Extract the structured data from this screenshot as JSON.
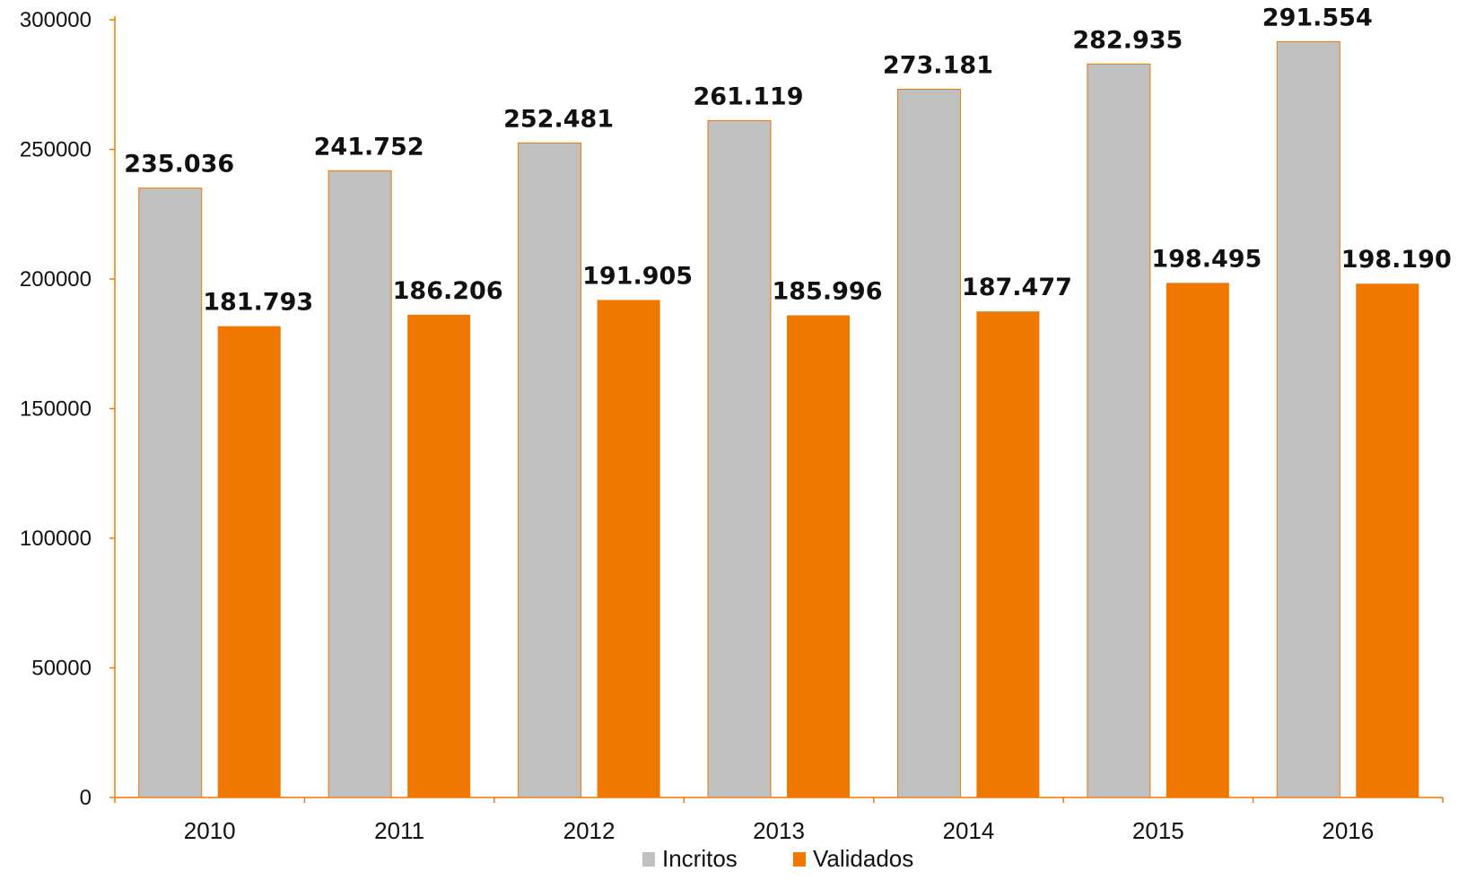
{
  "chart_data": {
    "type": "bar",
    "categories": [
      "2010",
      "2011",
      "2012",
      "2013",
      "2014",
      "2015",
      "2016"
    ],
    "series": [
      {
        "name": "Incritos",
        "color": "#c0c0c0",
        "values": [
          235036,
          241752,
          252481,
          261119,
          273181,
          282935,
          291554
        ],
        "labels": [
          "235.036",
          "241.752",
          "252.481",
          "261.119",
          "273.181",
          "282.935",
          "291.554"
        ]
      },
      {
        "name": "Validados",
        "color": "#f07800",
        "values": [
          181793,
          186206,
          191905,
          185996,
          187477,
          198495,
          198190
        ],
        "labels": [
          "181.793",
          "186.206",
          "191.905",
          "185.996",
          "187.477",
          "198.495",
          "198.190"
        ]
      }
    ],
    "y_ticks": [
      "0",
      "50000",
      "100000",
      "150000",
      "200000",
      "250000",
      "300000"
    ],
    "ylim": [
      0,
      300000
    ],
    "axis_color": "#f07800",
    "grid": false,
    "legend_position": "bottom-center",
    "title": "",
    "xlabel": "",
    "ylabel": ""
  }
}
